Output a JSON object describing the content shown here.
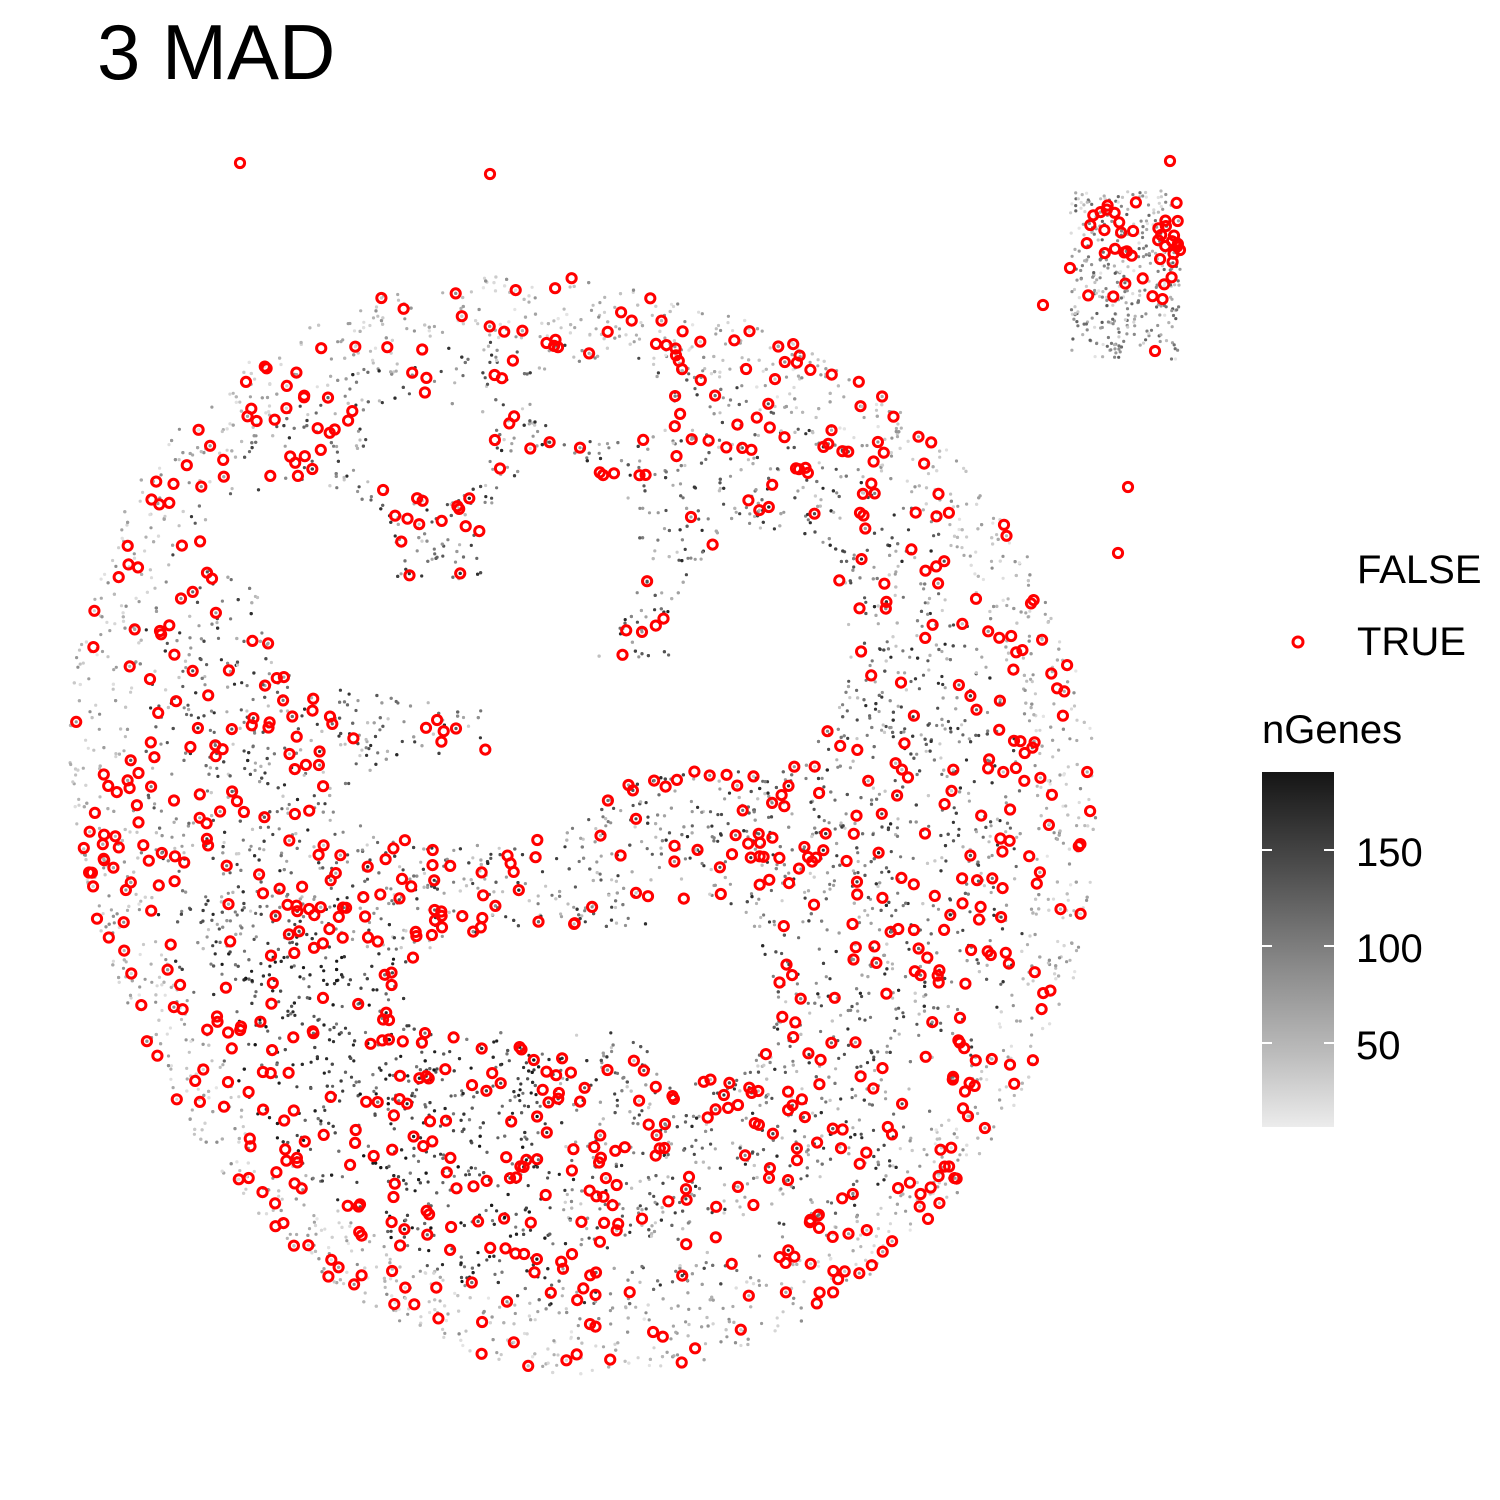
{
  "chart_data": {
    "type": "scatter",
    "title": "3 MAD",
    "xlabel": "",
    "ylabel": "",
    "description_axes": "spatial coordinates (axes hidden)",
    "outlier_legend": {
      "title": "",
      "entries": [
        {
          "label": "FALSE",
          "color": "none",
          "shape": "none"
        },
        {
          "label": "TRUE",
          "color": "#ff0000",
          "shape": "open-circle"
        }
      ]
    },
    "color_legend": {
      "title": "nGenes",
      "ticks": [
        {
          "value": 150,
          "label": "150"
        },
        {
          "value": 100,
          "label": "100"
        },
        {
          "value": 50,
          "label": "50"
        }
      ],
      "range": [
        15,
        195
      ],
      "low_color": "#ececec",
      "high_color": "#111111"
    },
    "series": [
      {
        "name": "FALSE",
        "representation": "dense cloud of small grey spots colored by nGenes"
      },
      {
        "name": "TRUE",
        "representation": "open red circles overlaid on outlier spots"
      }
    ]
  }
}
